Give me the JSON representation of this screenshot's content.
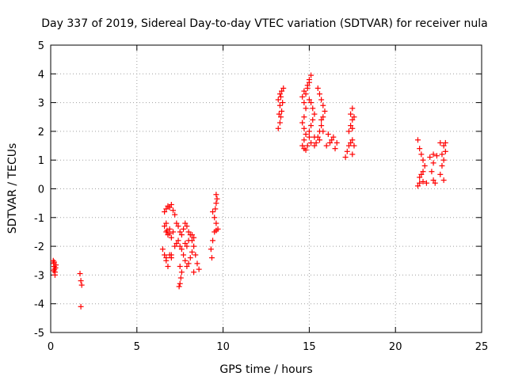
{
  "chart_data": {
    "type": "scatter",
    "title": "Day 337 of 2019, Sidereal Day-to-day VTEC variation (SDTVAR) for receiver nula",
    "xlabel": "GPS time / hours",
    "ylabel": "SDTVAR / TECUs",
    "xlim": [
      0,
      25
    ],
    "ylim": [
      -5,
      5
    ],
    "x_ticks": [
      0,
      5,
      10,
      15,
      20,
      25
    ],
    "y_ticks": [
      -5,
      -4,
      -3,
      -2,
      -1,
      0,
      1,
      2,
      3,
      4,
      5
    ],
    "grid": true,
    "marker": "+",
    "marker_color": "#ff0000",
    "series": [
      {
        "name": "SDTVAR",
        "points": [
          [
            0.15,
            -2.5
          ],
          [
            0.18,
            -2.6
          ],
          [
            0.2,
            -2.7
          ],
          [
            0.22,
            -2.8
          ],
          [
            0.25,
            -2.9
          ],
          [
            0.25,
            -3.0
          ],
          [
            0.2,
            -2.55
          ],
          [
            0.3,
            -2.65
          ],
          [
            0.28,
            -2.75
          ],
          [
            0.18,
            -2.85
          ],
          [
            1.7,
            -2.95
          ],
          [
            1.75,
            -3.2
          ],
          [
            1.8,
            -3.35
          ],
          [
            1.75,
            -4.1
          ],
          [
            6.5,
            -2.1
          ],
          [
            6.6,
            -2.3
          ],
          [
            6.7,
            -2.5
          ],
          [
            6.8,
            -2.7
          ],
          [
            6.7,
            -2.4
          ],
          [
            6.9,
            -2.3
          ],
          [
            7.0,
            -2.4
          ],
          [
            6.6,
            -1.3
          ],
          [
            6.7,
            -1.5
          ],
          [
            6.8,
            -1.6
          ],
          [
            6.9,
            -1.4
          ],
          [
            7.0,
            -1.7
          ],
          [
            7.1,
            -1.5
          ],
          [
            6.7,
            -1.2
          ],
          [
            6.75,
            -1.45
          ],
          [
            6.9,
            -1.55
          ],
          [
            6.6,
            -0.8
          ],
          [
            6.7,
            -0.7
          ],
          [
            6.8,
            -0.6
          ],
          [
            6.9,
            -0.65
          ],
          [
            7.0,
            -0.55
          ],
          [
            7.1,
            -0.75
          ],
          [
            7.2,
            -0.9
          ],
          [
            7.3,
            -1.2
          ],
          [
            7.4,
            -1.3
          ],
          [
            7.5,
            -1.5
          ],
          [
            7.6,
            -1.6
          ],
          [
            7.7,
            -1.4
          ],
          [
            7.8,
            -1.2
          ],
          [
            7.9,
            -1.3
          ],
          [
            8.0,
            -1.5
          ],
          [
            8.1,
            -1.6
          ],
          [
            7.4,
            -1.8
          ],
          [
            7.5,
            -2.0
          ],
          [
            7.6,
            -2.1
          ],
          [
            7.7,
            -2.3
          ],
          [
            7.8,
            -2.5
          ],
          [
            7.9,
            -2.7
          ],
          [
            8.0,
            -2.6
          ],
          [
            8.1,
            -2.4
          ],
          [
            8.2,
            -2.2
          ],
          [
            7.5,
            -2.7
          ],
          [
            7.6,
            -2.9
          ],
          [
            7.55,
            -3.1
          ],
          [
            7.5,
            -3.3
          ],
          [
            7.45,
            -3.4
          ],
          [
            8.2,
            -1.8
          ],
          [
            8.3,
            -2.0
          ],
          [
            8.4,
            -2.3
          ],
          [
            8.5,
            -2.6
          ],
          [
            8.6,
            -2.8
          ],
          [
            8.3,
            -2.9
          ],
          [
            8.2,
            -1.6
          ],
          [
            8.3,
            -1.7
          ],
          [
            7.0,
            -2.3
          ],
          [
            7.2,
            -2.0
          ],
          [
            7.3,
            -1.9
          ],
          [
            7.8,
            -1.9
          ],
          [
            8.0,
            -1.8
          ],
          [
            7.9,
            -2.0
          ],
          [
            9.4,
            -0.8
          ],
          [
            9.5,
            -1.0
          ],
          [
            9.6,
            -1.2
          ],
          [
            9.5,
            -1.5
          ],
          [
            9.4,
            -1.8
          ],
          [
            9.3,
            -2.1
          ],
          [
            9.35,
            -2.4
          ],
          [
            9.6,
            -0.2
          ],
          [
            9.65,
            -0.35
          ],
          [
            9.6,
            -0.5
          ],
          [
            9.55,
            -0.7
          ],
          [
            9.7,
            -1.4
          ],
          [
            9.6,
            -1.45
          ],
          [
            13.2,
            2.1
          ],
          [
            13.3,
            2.3
          ],
          [
            13.35,
            2.5
          ],
          [
            13.4,
            2.7
          ],
          [
            13.3,
            2.9
          ],
          [
            13.2,
            3.1
          ],
          [
            13.3,
            3.3
          ],
          [
            13.4,
            3.4
          ],
          [
            13.5,
            3.5
          ],
          [
            13.45,
            3.0
          ],
          [
            13.35,
            3.2
          ],
          [
            13.25,
            2.6
          ],
          [
            14.6,
            1.5
          ],
          [
            14.7,
            1.7
          ],
          [
            14.8,
            1.9
          ],
          [
            14.7,
            2.1
          ],
          [
            14.6,
            2.3
          ],
          [
            14.7,
            2.5
          ],
          [
            14.8,
            2.8
          ],
          [
            14.7,
            3.0
          ],
          [
            14.6,
            3.2
          ],
          [
            14.7,
            3.4
          ],
          [
            14.9,
            3.6
          ],
          [
            15.0,
            3.8
          ],
          [
            15.1,
            3.95
          ],
          [
            15.0,
            3.7
          ],
          [
            14.9,
            3.5
          ],
          [
            14.8,
            3.3
          ],
          [
            15.0,
            2.0
          ],
          [
            15.1,
            2.2
          ],
          [
            15.2,
            2.4
          ],
          [
            15.3,
            2.6
          ],
          [
            15.2,
            2.8
          ],
          [
            15.1,
            3.0
          ],
          [
            15.0,
            3.1
          ],
          [
            15.3,
            1.8
          ],
          [
            15.4,
            1.6
          ],
          [
            15.5,
            1.8
          ],
          [
            15.6,
            2.0
          ],
          [
            15.7,
            2.2
          ],
          [
            15.8,
            2.0
          ],
          [
            15.6,
            1.7
          ],
          [
            15.5,
            3.5
          ],
          [
            15.6,
            3.3
          ],
          [
            15.7,
            3.1
          ],
          [
            15.8,
            2.9
          ],
          [
            15.9,
            2.7
          ],
          [
            15.8,
            2.5
          ],
          [
            15.7,
            2.4
          ],
          [
            14.7,
            1.4
          ],
          [
            14.8,
            1.35
          ],
          [
            14.9,
            1.5
          ],
          [
            15.1,
            1.6
          ],
          [
            15.3,
            1.5
          ],
          [
            15.0,
            1.8
          ],
          [
            16.0,
            1.5
          ],
          [
            16.2,
            1.6
          ],
          [
            16.4,
            1.8
          ],
          [
            16.6,
            1.6
          ],
          [
            16.5,
            1.4
          ],
          [
            16.3,
            1.7
          ],
          [
            16.1,
            1.9
          ],
          [
            17.3,
            2.0
          ],
          [
            17.4,
            2.2
          ],
          [
            17.5,
            2.4
          ],
          [
            17.4,
            2.6
          ],
          [
            17.5,
            2.8
          ],
          [
            17.6,
            2.5
          ],
          [
            17.5,
            2.1
          ],
          [
            17.1,
            1.1
          ],
          [
            17.2,
            1.3
          ],
          [
            17.3,
            1.5
          ],
          [
            17.4,
            1.6
          ],
          [
            17.5,
            1.7
          ],
          [
            17.6,
            1.5
          ],
          [
            17.5,
            1.2
          ],
          [
            21.3,
            1.7
          ],
          [
            21.4,
            1.4
          ],
          [
            21.5,
            1.2
          ],
          [
            21.6,
            1.0
          ],
          [
            21.7,
            0.8
          ],
          [
            21.6,
            0.6
          ],
          [
            21.5,
            0.5
          ],
          [
            21.4,
            0.4
          ],
          [
            21.3,
            0.1
          ],
          [
            21.4,
            0.2
          ],
          [
            21.6,
            0.25
          ],
          [
            21.8,
            0.2
          ],
          [
            22.0,
            1.1
          ],
          [
            22.2,
            1.2
          ],
          [
            22.4,
            1.15
          ],
          [
            22.2,
            0.9
          ],
          [
            22.1,
            0.6
          ],
          [
            22.2,
            0.3
          ],
          [
            22.3,
            0.2
          ],
          [
            22.6,
            1.6
          ],
          [
            22.8,
            1.5
          ],
          [
            22.9,
            1.3
          ],
          [
            22.8,
            1.0
          ],
          [
            22.7,
            0.8
          ],
          [
            22.6,
            0.5
          ],
          [
            22.8,
            0.3
          ],
          [
            22.9,
            1.6
          ],
          [
            22.7,
            1.2
          ]
        ]
      }
    ]
  }
}
